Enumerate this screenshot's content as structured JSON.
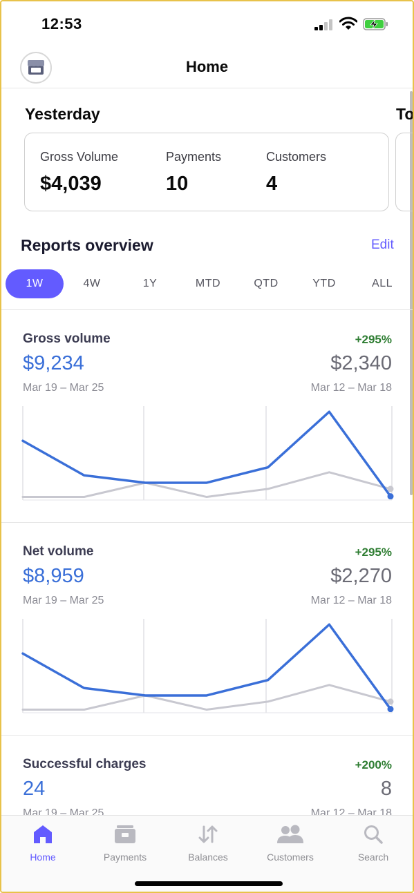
{
  "status_bar": {
    "time": "12:53"
  },
  "nav": {
    "title": "Home",
    "avatar_icon": "store-icon"
  },
  "yesterday": {
    "title": "Yesterday",
    "next_title": "To",
    "metrics": [
      {
        "label": "Gross Volume",
        "value": "$4,039"
      },
      {
        "label": "Payments",
        "value": "10"
      },
      {
        "label": "Customers",
        "value": "4"
      }
    ]
  },
  "reports": {
    "title": "Reports overview",
    "edit_label": "Edit",
    "ranges": [
      "1W",
      "4W",
      "1Y",
      "MTD",
      "QTD",
      "YTD",
      "ALL"
    ],
    "selected_range": "1W",
    "items": [
      {
        "name": "Gross volume",
        "change": "+295%",
        "current_value": "$9,234",
        "previous_value": "$2,340",
        "current_range": "Mar 19 – Mar 25",
        "previous_range": "Mar 12 – Mar 18",
        "chart_data": {
          "type": "line",
          "x": [
            1,
            2,
            3,
            4,
            5,
            6,
            7
          ],
          "series": [
            {
              "values": [
                9.6,
                4.0,
                2.8,
                2.8,
                5.3,
                14.3,
                0.6
              ],
              "color": "#3a6fd8"
            },
            {
              "values": [
                0.5,
                0.5,
                2.8,
                0.5,
                1.8,
                4.5,
                1.8
              ],
              "color": "#c8c8d0"
            }
          ],
          "ylim": [
            0,
            15
          ]
        }
      },
      {
        "name": "Net volume",
        "change": "+295%",
        "current_value": "$8,959",
        "previous_value": "$2,270",
        "current_range": "Mar 19 – Mar 25",
        "previous_range": "Mar 12 – Mar 18",
        "chart_data": {
          "type": "line",
          "x": [
            1,
            2,
            3,
            4,
            5,
            6,
            7
          ],
          "series": [
            {
              "values": [
                9.6,
                4.0,
                2.8,
                2.8,
                5.3,
                14.3,
                0.6
              ],
              "color": "#3a6fd8"
            },
            {
              "values": [
                0.5,
                0.5,
                2.8,
                0.5,
                1.8,
                4.5,
                1.8
              ],
              "color": "#c8c8d0"
            }
          ],
          "ylim": [
            0,
            15
          ]
        }
      },
      {
        "name": "Successful charges",
        "change": "+200%",
        "current_value": "24",
        "previous_value": "8",
        "current_range": "Mar 19 – Mar 25",
        "previous_range": "Mar 12 – Mar 18"
      }
    ]
  },
  "tab_bar": {
    "items": [
      {
        "label": "Home",
        "icon": "home-icon",
        "active": true
      },
      {
        "label": "Payments",
        "icon": "payments-icon",
        "active": false
      },
      {
        "label": "Balances",
        "icon": "balances-icon",
        "active": false
      },
      {
        "label": "Customers",
        "icon": "customers-icon",
        "active": false
      },
      {
        "label": "Search",
        "icon": "search-icon",
        "active": false
      }
    ]
  },
  "colors": {
    "accent": "#635bff",
    "positive": "#2e7d32",
    "current_series": "#3a6fd8",
    "previous_series": "#c8c8d0"
  }
}
